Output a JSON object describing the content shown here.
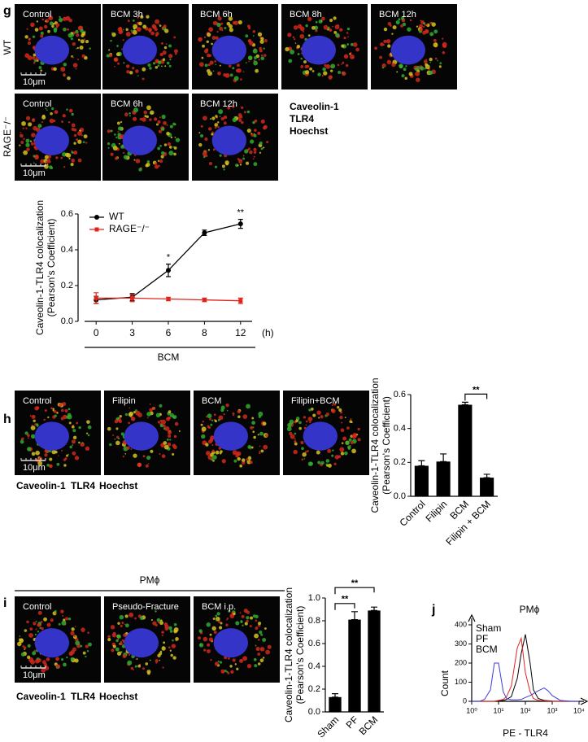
{
  "panels": {
    "g": {
      "label": "g",
      "row_labels": [
        "WT",
        "RAGE⁻/⁻"
      ],
      "rows": [
        [
          "Control",
          "BCM 3h",
          "BCM 6h",
          "BCM 8h",
          "BCM 12h"
        ],
        [
          "Control",
          "BCM 6h",
          "BCM 12h"
        ]
      ],
      "scale_bar": "10μm",
      "stain_legend": [
        "Caveolin-1",
        "TLR4",
        "Hoechst"
      ]
    },
    "h": {
      "label": "h",
      "images": [
        "Control",
        "Filipin",
        "BCM",
        "Filipin+BCM"
      ],
      "scale_bar": "10μm",
      "stain_legend": [
        "Caveolin-1",
        "TLR4",
        "Hoechst"
      ]
    },
    "i": {
      "label": "i",
      "header": "PMϕ",
      "images": [
        "Control",
        "Pseudo-Fracture",
        "BCM i.p."
      ],
      "scale_bar": "10μm",
      "stain_legend": [
        "Caveolin-1",
        "TLR4",
        "Hoechst"
      ]
    },
    "j": {
      "label": "j"
    },
    "stain_colors": [
      "#35b835",
      "#e2231a",
      "#3d3dd6"
    ]
  },
  "chart_data": [
    {
      "type": "line",
      "categories": [
        "0",
        "3",
        "6",
        "8",
        "12"
      ],
      "x_unit": "(h)",
      "x_group": "BCM",
      "ylabel": [
        "Caveolin-1-TLR4 colocalization",
        "(Pearson's Coefficient)"
      ],
      "ylim": [
        0,
        0.6
      ],
      "yticks": [
        {
          "value": 0,
          "label": "0.0"
        },
        0.2,
        0.4,
        0.6
      ],
      "series": [
        {
          "name": "WT",
          "color": "#000000",
          "marker": "circle",
          "values": [
            0.12,
            0.135,
            0.285,
            0.495,
            0.545
          ],
          "errors": [
            0.02,
            0.02,
            0.035,
            0.015,
            0.025
          ]
        },
        {
          "name": "RAGE⁻/⁻",
          "color": "#e2231a",
          "marker": "square",
          "values": [
            0.13,
            0.13,
            0.125,
            0.12,
            0.115
          ],
          "errors": [
            0.03,
            0.02,
            0.01,
            0.01,
            0.015
          ]
        }
      ],
      "annotations": [
        null,
        null,
        "*",
        null,
        "**"
      ]
    },
    {
      "type": "bar",
      "categories": [
        "Control",
        "Filipin",
        "BCM",
        "Filipin + BCM"
      ],
      "values": [
        0.18,
        0.205,
        0.54,
        0.11
      ],
      "errors": [
        0.03,
        0.045,
        0.015,
        0.02
      ],
      "color": "#000000",
      "ylabel": [
        "Caveolin-1-TLR4 colocalization",
        "(Pearson's Coefficient)"
      ],
      "ylim": [
        0,
        0.6
      ],
      "yticks": [
        {
          "value": 0,
          "label": "0.0"
        },
        0.2,
        0.4,
        0.6
      ],
      "brackets": [
        {
          "between": [
            "BCM",
            "Filipin + BCM"
          ],
          "text": "**"
        }
      ]
    },
    {
      "type": "bar",
      "categories": [
        "Sham",
        "PF",
        "BCM"
      ],
      "values": [
        0.13,
        0.81,
        0.89
      ],
      "errors": [
        0.03,
        0.07,
        0.03
      ],
      "color": "#000000",
      "ylabel": [
        "Caveolin-1-TLR4 colocalization",
        "(Pearson's Coefficient)"
      ],
      "ylim": [
        0,
        1.0
      ],
      "yticks": [
        {
          "value": 0,
          "label": "0.0"
        },
        0.2,
        0.4,
        0.6,
        0.8,
        {
          "value": 1,
          "label": "1.0"
        }
      ],
      "brackets": [
        {
          "between": [
            "Sham",
            "PF"
          ],
          "text": "**"
        },
        {
          "between": [
            "Sham",
            "BCM"
          ],
          "text": "**"
        }
      ]
    },
    {
      "type": "line",
      "title": "PMϕ",
      "xlabel": "PE - TLR4",
      "ylabel": [
        "Count"
      ],
      "log_x": true,
      "x": [
        1,
        2,
        3,
        5,
        7,
        10,
        15,
        20,
        30,
        50,
        70,
        100,
        150,
        200,
        300,
        500,
        700,
        1000,
        2000,
        5000,
        10000
      ],
      "xlim": [
        1,
        10000
      ],
      "xticks": [
        {
          "value": 1,
          "label": "10⁰"
        },
        {
          "value": 10,
          "label": "10¹"
        },
        {
          "value": 100,
          "label": "10²"
        },
        {
          "value": 1000,
          "label": "10³"
        },
        {
          "value": 10000,
          "label": "10⁴"
        }
      ],
      "ylim": [
        0,
        400
      ],
      "yticks": [
        0,
        100,
        200,
        300,
        400
      ],
      "series": [
        {
          "name": "Sham",
          "color": "#000000",
          "values": [
            0,
            0,
            0,
            0,
            0,
            2,
            5,
            10,
            25,
            120,
            250,
            350,
            200,
            60,
            15,
            5,
            3,
            1,
            0,
            0,
            0
          ]
        },
        {
          "name": "PF",
          "color": "#e2231a",
          "values": [
            0,
            0,
            0,
            0,
            0,
            5,
            10,
            25,
            80,
            280,
            330,
            150,
            50,
            15,
            5,
            2,
            1,
            0,
            0,
            0,
            0
          ]
        },
        {
          "name": "BCM",
          "color": "#3d3dd6",
          "values": [
            0,
            0,
            10,
            60,
            200,
            200,
            50,
            15,
            8,
            8,
            10,
            20,
            30,
            40,
            55,
            70,
            55,
            30,
            5,
            0,
            0
          ]
        }
      ]
    }
  ]
}
